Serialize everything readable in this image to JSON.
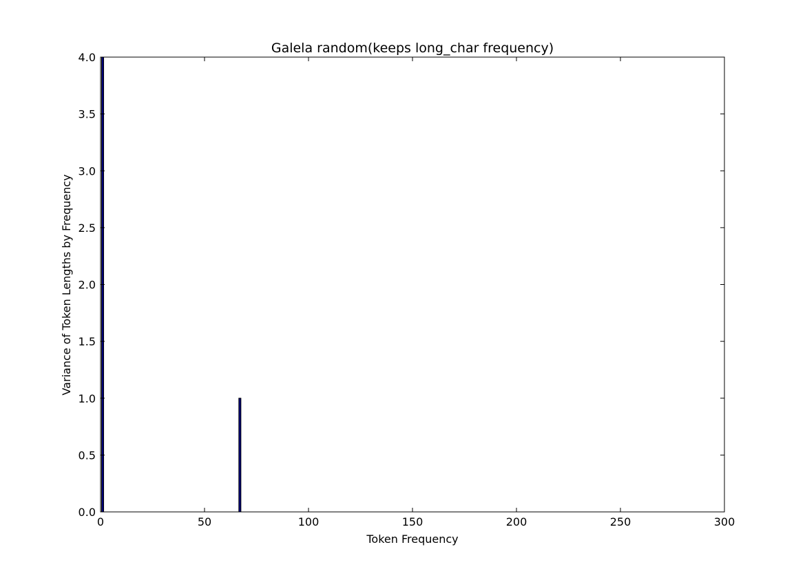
{
  "chart_data": {
    "type": "bar",
    "title": "Galela random(keeps long_char frequency)",
    "xlabel": "Token Frequency",
    "ylabel": "Variance of Token Lengths by Frequency",
    "xlim": [
      0,
      300
    ],
    "ylim": [
      0,
      4.0
    ],
    "xticks": [
      "0",
      "50",
      "100",
      "150",
      "200",
      "250",
      "300"
    ],
    "yticks": [
      "0.0",
      "0.5",
      "1.0",
      "1.5",
      "2.0",
      "2.5",
      "3.0",
      "3.5",
      "4.0"
    ],
    "bar_width": 1,
    "bar_color": "#00007f",
    "grid": false,
    "points": [
      {
        "x": 1,
        "y": 4.0
      },
      {
        "x": 67,
        "y": 1.0
      }
    ]
  }
}
